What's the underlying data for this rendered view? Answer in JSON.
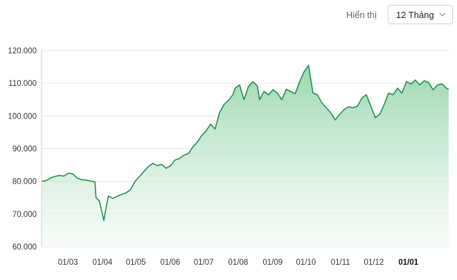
{
  "toolbar": {
    "label": "Hiển thị",
    "range": "12 Tháng"
  },
  "colors": {
    "line": "#1f8f4a",
    "fill_top": "#8fd3a5",
    "fill_bottom": "#eef8f1",
    "grid": "#e6e6e6"
  },
  "chart_data": {
    "type": "area",
    "ylim": [
      60000,
      120000
    ],
    "y_ticks": [
      "60.000",
      "70.000",
      "80.000",
      "90.000",
      "100.000",
      "110.000",
      "120.000"
    ],
    "y_tick_values": [
      60000,
      70000,
      80000,
      90000,
      100000,
      110000,
      120000
    ],
    "x_ticks": [
      "01/03",
      "01/04",
      "01/05",
      "01/06",
      "01/07",
      "01/08",
      "01/09",
      "01/10",
      "01/11",
      "01/12",
      "01/01"
    ],
    "x_tick_dates": [
      "2024-03-01",
      "2024-04-01",
      "2024-05-01",
      "2024-06-01",
      "2024-07-01",
      "2024-08-01",
      "2024-09-01",
      "2024-10-01",
      "2024-11-01",
      "2024-12-01",
      "2025-01-01"
    ],
    "x_tick_bold": [
      false,
      false,
      false,
      false,
      false,
      false,
      false,
      false,
      false,
      false,
      true
    ],
    "x_range": [
      "2024-02-10",
      "2025-02-10"
    ],
    "grid": true,
    "series": [
      {
        "x": [
          "2024-02-10",
          "2024-02-14",
          "2024-02-18",
          "2024-02-22",
          "2024-02-26",
          "2024-03-01",
          "2024-03-05",
          "2024-03-09",
          "2024-03-13",
          "2024-03-17",
          "2024-03-21",
          "2024-03-25",
          "2024-03-29",
          "2024-03-30",
          "2024-04-02",
          "2024-04-06",
          "2024-04-08",
          "2024-04-10",
          "2024-04-14",
          "2024-04-18",
          "2024-04-22",
          "2024-04-26",
          "2024-04-30",
          "2024-05-04",
          "2024-05-08",
          "2024-05-12",
          "2024-05-16",
          "2024-05-20",
          "2024-05-24",
          "2024-05-28",
          "2024-06-01",
          "2024-06-05",
          "2024-06-09",
          "2024-06-13",
          "2024-06-17",
          "2024-06-21",
          "2024-06-25",
          "2024-06-29",
          "2024-07-03",
          "2024-07-07",
          "2024-07-11",
          "2024-07-15",
          "2024-07-19",
          "2024-07-23",
          "2024-07-27",
          "2024-07-31",
          "2024-08-02",
          "2024-08-06",
          "2024-08-10",
          "2024-08-14",
          "2024-08-18",
          "2024-08-22",
          "2024-08-24",
          "2024-08-28",
          "2024-09-01",
          "2024-09-05",
          "2024-09-09",
          "2024-09-13",
          "2024-09-17",
          "2024-09-21",
          "2024-09-25",
          "2024-09-29",
          "2024-10-03",
          "2024-10-07",
          "2024-10-11",
          "2024-10-15",
          "2024-10-19",
          "2024-10-23",
          "2024-10-27",
          "2024-10-31",
          "2024-11-04",
          "2024-11-08",
          "2024-11-12",
          "2024-11-16",
          "2024-11-20",
          "2024-11-24",
          "2024-11-28",
          "2024-12-02",
          "2024-12-06",
          "2024-12-10",
          "2024-12-14",
          "2024-12-18",
          "2024-12-22",
          "2024-12-26",
          "2024-12-30",
          "2025-01-03",
          "2025-01-07",
          "2025-01-11",
          "2025-01-15",
          "2025-01-19",
          "2025-01-23",
          "2025-01-27",
          "2025-01-31",
          "2025-02-04",
          "2025-02-08",
          "2025-02-10"
        ],
        "values": [
          80000,
          80200,
          81000,
          81500,
          81800,
          81600,
          82500,
          82300,
          81000,
          80500,
          80400,
          80100,
          79800,
          75000,
          74000,
          68000,
          72000,
          75500,
          74800,
          75400,
          76000,
          76500,
          77500,
          80000,
          81500,
          83000,
          84500,
          85500,
          84800,
          85200,
          84000,
          84800,
          86500,
          87000,
          88000,
          88500,
          90500,
          92000,
          94000,
          95500,
          97500,
          96000,
          101000,
          103500,
          104800,
          106500,
          108500,
          109500,
          105000,
          109000,
          110500,
          109200,
          105000,
          107500,
          106500,
          108000,
          107000,
          105000,
          108200,
          107500,
          106800,
          110500,
          113500,
          115500,
          107000,
          106500,
          104000,
          102500,
          101000,
          98800,
          100500,
          102000,
          102800,
          102500,
          103000,
          105500,
          106500,
          103000,
          99500,
          100500,
          103500,
          107000,
          106500,
          108500,
          107000,
          110500,
          109800,
          111000,
          109500,
          110800,
          110200,
          108000,
          109500,
          109800,
          108500,
          108200
        ]
      }
    ]
  }
}
